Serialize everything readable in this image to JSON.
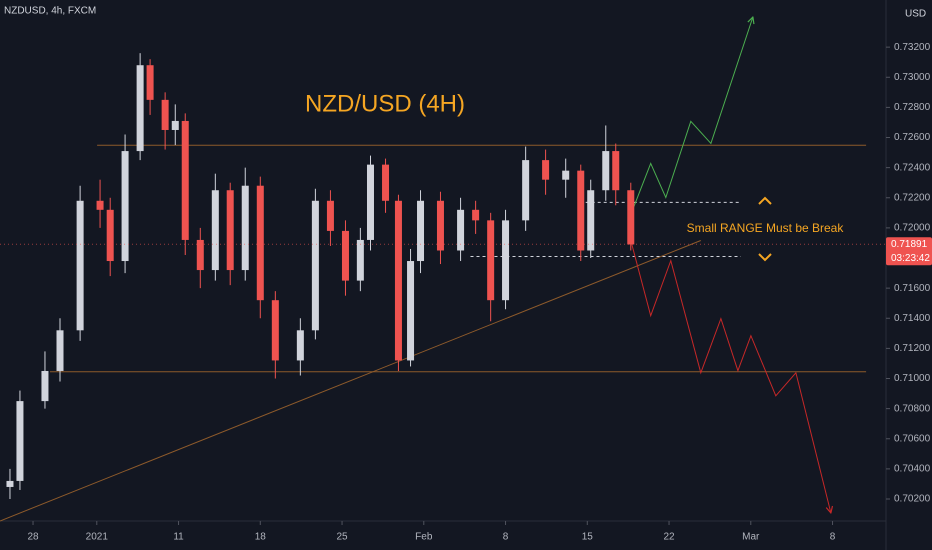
{
  "chart_data": {
    "type": "candlestick",
    "header": "NZDUSD, 4h, FXCM",
    "currency": "USD",
    "title": "NZD/USD (4H)",
    "annotation": "Small RANGE Must be Break",
    "last_price": {
      "value": 0.71891,
      "label": "0.71891"
    },
    "countdown": "03:23:42",
    "up_color": "#d1d4dc",
    "down_color": "#ef5350",
    "grid": false,
    "xlim": [
      -2.02,
      52.17
    ],
    "ylim": [
      0.70054,
      0.73513
    ],
    "xticks": [
      {
        "value": 0,
        "label": "28"
      },
      {
        "value": 3.9,
        "label": "2021"
      },
      {
        "value": 8.9,
        "label": "11"
      },
      {
        "value": 13.9,
        "label": "18"
      },
      {
        "value": 18.9,
        "label": "25"
      },
      {
        "value": 23.9,
        "label": "Feb"
      },
      {
        "value": 28.9,
        "label": "8"
      },
      {
        "value": 33.9,
        "label": "15"
      },
      {
        "value": 38.9,
        "label": "22"
      },
      {
        "value": 43.9,
        "label": "Mar"
      },
      {
        "value": 48.9,
        "label": "8"
      }
    ],
    "yticks": [
      {
        "value": 0.702,
        "label": "0.70200"
      },
      {
        "value": 0.704,
        "label": "0.70400"
      },
      {
        "value": 0.706,
        "label": "0.70600"
      },
      {
        "value": 0.708,
        "label": "0.70800"
      },
      {
        "value": 0.71,
        "label": "0.71000"
      },
      {
        "value": 0.712,
        "label": "0.71200"
      },
      {
        "value": 0.714,
        "label": "0.71400"
      },
      {
        "value": 0.716,
        "label": "0.71600"
      },
      {
        "value": 0.718,
        "label": "0.71800"
      },
      {
        "value": 0.72,
        "label": "0.72000"
      },
      {
        "value": 0.722,
        "label": "0.72200"
      },
      {
        "value": 0.724,
        "label": "0.72400"
      },
      {
        "value": 0.726,
        "label": "0.72600"
      },
      {
        "value": 0.728,
        "label": "0.72800"
      },
      {
        "value": 0.73,
        "label": "0.73000"
      },
      {
        "value": 0.732,
        "label": "0.73200"
      }
    ],
    "candles": {
      "x": [
        -1.41,
        -0.8,
        0.73,
        1.65,
        2.88,
        4.1,
        4.72,
        5.63,
        6.55,
        7.16,
        8.08,
        8.7,
        9.31,
        10.23,
        11.15,
        12.06,
        12.98,
        13.9,
        14.82,
        16.35,
        17.27,
        18.19,
        19.11,
        20.02,
        20.64,
        21.56,
        22.35,
        23.09,
        23.7,
        24.92,
        26.15,
        27.07,
        27.99,
        28.9,
        30.13,
        31.35,
        32.58,
        33.5,
        34.11,
        35.03,
        35.64,
        36.56
      ],
      "open": [
        0.7028,
        0.7032,
        0.7085,
        0.7105,
        0.7132,
        0.7218,
        0.7212,
        0.7178,
        0.7251,
        0.7308,
        0.7285,
        0.7265,
        0.7271,
        0.7192,
        0.7172,
        0.7225,
        0.7172,
        0.7228,
        0.7152,
        0.7112,
        0.7132,
        0.7218,
        0.7198,
        0.7165,
        0.7192,
        0.7242,
        0.7218,
        0.7112,
        0.7178,
        0.7218,
        0.7185,
        0.7212,
        0.7205,
        0.7152,
        0.7205,
        0.7245,
        0.7232,
        0.7238,
        0.7185,
        0.7225,
        0.7251,
        0.7225
      ],
      "high": [
        0.704,
        0.7092,
        0.7118,
        0.714,
        0.7228,
        0.7232,
        0.722,
        0.7262,
        0.7316,
        0.7312,
        0.729,
        0.7282,
        0.7276,
        0.72,
        0.7236,
        0.723,
        0.724,
        0.7234,
        0.7158,
        0.714,
        0.7226,
        0.7225,
        0.7205,
        0.72,
        0.7248,
        0.7246,
        0.7222,
        0.7186,
        0.7225,
        0.7224,
        0.722,
        0.7218,
        0.721,
        0.7212,
        0.7254,
        0.7252,
        0.7246,
        0.7242,
        0.7232,
        0.7268,
        0.7256,
        0.723
      ],
      "low": [
        0.702,
        0.7026,
        0.708,
        0.7098,
        0.7125,
        0.72,
        0.7168,
        0.717,
        0.7245,
        0.7275,
        0.7252,
        0.7255,
        0.7182,
        0.716,
        0.7165,
        0.7162,
        0.7165,
        0.714,
        0.71,
        0.7102,
        0.7126,
        0.7188,
        0.7155,
        0.7158,
        0.7185,
        0.721,
        0.7105,
        0.7108,
        0.717,
        0.7176,
        0.7178,
        0.7196,
        0.7138,
        0.7146,
        0.7198,
        0.7222,
        0.722,
        0.7178,
        0.718,
        0.7218,
        0.7215,
        0.7185
      ],
      "close": [
        0.7032,
        0.7085,
        0.7105,
        0.7132,
        0.7218,
        0.7212,
        0.7178,
        0.7251,
        0.7308,
        0.7285,
        0.7265,
        0.7271,
        0.7192,
        0.7172,
        0.7225,
        0.7172,
        0.7228,
        0.7152,
        0.7112,
        0.7132,
        0.7218,
        0.7198,
        0.7165,
        0.7192,
        0.7242,
        0.7218,
        0.7112,
        0.7178,
        0.7218,
        0.7185,
        0.7212,
        0.7205,
        0.7152,
        0.7205,
        0.7245,
        0.7232,
        0.7238,
        0.7185,
        0.7225,
        0.7251,
        0.7225,
        0.7189
      ]
    },
    "drawings": [
      {
        "name": "resistance",
        "color": "#8d5a2b",
        "dash": false,
        "x": [
          3.92,
          50.95
        ],
        "y": [
          0.72548,
          0.72548
        ]
      },
      {
        "name": "support",
        "color": "#8d5a2b",
        "dash": false,
        "x": [
          1.04,
          50.95
        ],
        "y": [
          0.71045,
          0.71045
        ]
      },
      {
        "name": "trendline",
        "color": "#8d5a2b",
        "dash": false,
        "x": [
          -2.02,
          40.84
        ],
        "y": [
          0.70054,
          0.71916
        ]
      },
      {
        "name": "range-top",
        "color": "#d1d4dc",
        "dash": true,
        "x": [
          33.8,
          43.17
        ],
        "y": [
          0.72169,
          0.72169
        ]
      },
      {
        "name": "range-bottom",
        "color": "#d1d4dc",
        "dash": true,
        "x": [
          26.76,
          43.29
        ],
        "y": [
          0.7181,
          0.7181
        ]
      },
      {
        "name": "bull-path",
        "color": "#4caf50",
        "dash": false,
        "arrow": true,
        "x": [
          36.56,
          37.78,
          38.7,
          40.23,
          41.46,
          44.03
        ],
        "y": [
          0.72089,
          0.72428,
          0.72202,
          0.72708,
          0.72561,
          0.734
        ]
      },
      {
        "name": "bear-path",
        "color": "#c62828",
        "dash": false,
        "arrow": true,
        "x": [
          36.56,
          37.78,
          39.01,
          40.84,
          42.07,
          43.11,
          43.91,
          45.43,
          46.66,
          48.8
        ],
        "y": [
          0.71916,
          0.71417,
          0.71783,
          0.71038,
          0.71398,
          0.71052,
          0.71284,
          0.70885,
          0.71038,
          0.70107
        ]
      }
    ]
  }
}
